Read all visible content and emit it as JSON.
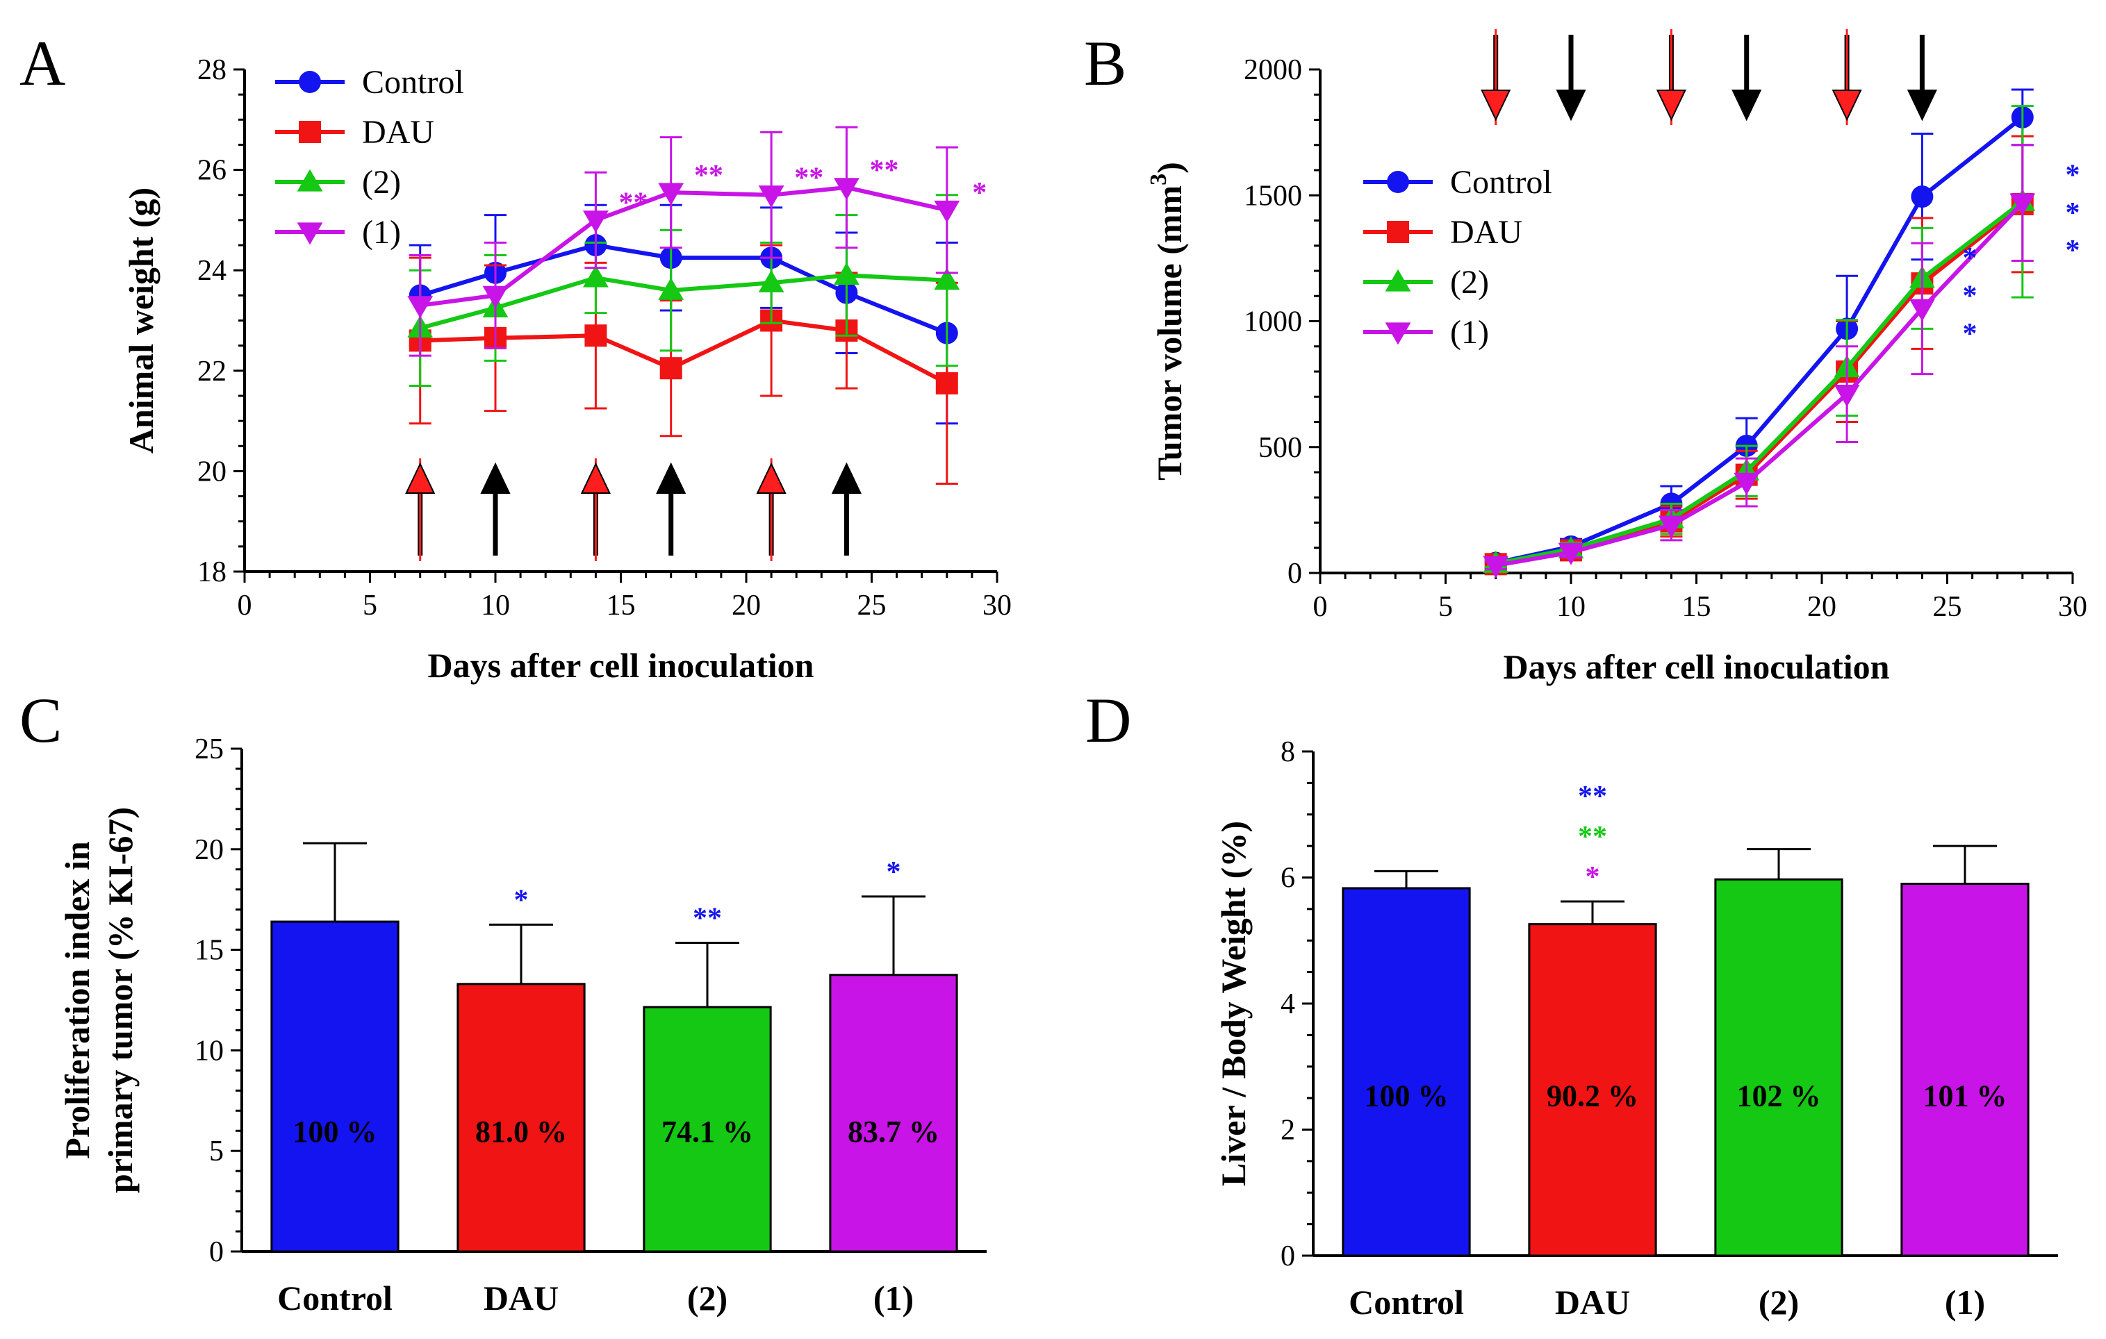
{
  "colors": {
    "Control": "#1414f0",
    "DAU": "#f01414",
    "(2)": "#14c814",
    "(1)": "#c814e6",
    "dose_red": "#ff1e1e",
    "dose_black": "#000000"
  },
  "chart_data": [
    {
      "panel": "A",
      "type": "line",
      "title": "",
      "xlabel": "Days after cell inoculation",
      "ylabel": "Animal weight (g)",
      "xlim": [
        0,
        30
      ],
      "ylim": [
        18,
        28
      ],
      "xticks": [
        0,
        5,
        10,
        15,
        20,
        25,
        30
      ],
      "yticks": [
        18,
        20,
        22,
        24,
        26,
        28
      ],
      "legend_position": "top-left",
      "x": [
        7,
        10,
        14,
        17,
        21,
        24,
        28
      ],
      "series": [
        {
          "name": "Control",
          "marker": "circle",
          "values": [
            23.5,
            23.95,
            24.5,
            24.25,
            24.25,
            23.55,
            22.75
          ],
          "errors": [
            1.0,
            1.15,
            0.8,
            1.05,
            1.0,
            1.2,
            1.8
          ]
        },
        {
          "name": "DAU",
          "marker": "square",
          "values": [
            22.6,
            22.65,
            22.7,
            22.05,
            23.0,
            22.8,
            21.75
          ],
          "errors": [
            1.65,
            1.45,
            1.45,
            1.35,
            1.5,
            1.15,
            2.0
          ]
        },
        {
          "name": "(2)",
          "marker": "triangle-up",
          "values": [
            22.85,
            23.25,
            23.85,
            23.6,
            23.75,
            23.9,
            23.8
          ],
          "errors": [
            1.15,
            1.05,
            0.7,
            1.2,
            0.8,
            1.2,
            1.7
          ]
        },
        {
          "name": "(1)",
          "marker": "triangle-down",
          "values": [
            23.3,
            23.5,
            25.0,
            25.55,
            25.5,
            25.65,
            25.2
          ],
          "errors": [
            1.0,
            1.05,
            0.95,
            1.1,
            1.25,
            1.2,
            1.25
          ]
        }
      ],
      "dose_arrows": {
        "red_days": [
          7,
          14,
          21
        ],
        "black_days": [
          10,
          17,
          24
        ],
        "direction": "up"
      },
      "annotations": [
        {
          "x": 15.5,
          "text": "**",
          "series": "(1)"
        },
        {
          "x": 18.5,
          "text": "**",
          "series": "(1)"
        },
        {
          "x": 22.5,
          "text": "**",
          "series": "(1)"
        },
        {
          "x": 25.5,
          "text": "**",
          "series": "(1)"
        },
        {
          "x": 29.3,
          "text": "*",
          "series": "(1)"
        }
      ]
    },
    {
      "panel": "B",
      "type": "line",
      "title": "",
      "xlabel": "Days after cell inoculation",
      "ylabel": "Tumor volume (mm",
      "ylabel_superscript": "3",
      "ylabel_end": ")",
      "xlim": [
        0,
        30
      ],
      "ylim": [
        0,
        2000
      ],
      "xticks": [
        0,
        5,
        10,
        15,
        20,
        25,
        30
      ],
      "yticks": [
        0,
        500,
        1000,
        1500,
        2000
      ],
      "legend_position": "center-left",
      "x": [
        7,
        10,
        14,
        17,
        21,
        24,
        28
      ],
      "series": [
        {
          "name": "Control",
          "marker": "circle",
          "values": [
            40,
            105,
            275,
            505,
            970,
            1495,
            1810
          ],
          "errors": [
            20,
            30,
            70,
            110,
            210,
            250,
            110
          ]
        },
        {
          "name": "DAU",
          "marker": "square",
          "values": [
            35,
            90,
            205,
            390,
            800,
            1150,
            1465
          ],
          "errors": [
            15,
            25,
            60,
            95,
            200,
            260,
            270
          ]
        },
        {
          "name": "(2)",
          "marker": "triangle-up",
          "values": [
            38,
            95,
            215,
            405,
            815,
            1170,
            1475
          ],
          "errors": [
            15,
            25,
            60,
            100,
            190,
            200,
            380
          ]
        },
        {
          "name": "(1)",
          "marker": "triangle-down",
          "values": [
            30,
            82,
            190,
            360,
            710,
            1050,
            1470
          ],
          "errors": [
            15,
            20,
            60,
            95,
            190,
            260,
            230
          ]
        }
      ],
      "dose_arrows": {
        "red_days": [
          7,
          14,
          21
        ],
        "black_days": [
          10,
          17,
          24
        ],
        "direction": "down"
      },
      "annotations": [
        {
          "x": 30.0,
          "y": 1610,
          "text": "*",
          "series": "Control"
        },
        {
          "x": 30.0,
          "y": 1460,
          "text": "*",
          "series": "Control"
        },
        {
          "x": 30.0,
          "y": 1310,
          "text": "*",
          "series": "Control"
        },
        {
          "x": 25.9,
          "y": 1280,
          "text": "*",
          "series": "Control"
        },
        {
          "x": 25.9,
          "y": 1130,
          "text": "*",
          "series": "Control"
        },
        {
          "x": 25.9,
          "y": 980,
          "text": "*",
          "series": "Control"
        }
      ]
    },
    {
      "panel": "C",
      "type": "bar",
      "title": "",
      "xlabel": "",
      "ylabel_lines": [
        "Proliferation index in",
        "primary tumor (% KI-67)"
      ],
      "ylim": [
        0,
        25
      ],
      "yticks": [
        0,
        5,
        10,
        15,
        20,
        25
      ],
      "categories": [
        "Control",
        "DAU",
        "(2)",
        "(1)"
      ],
      "values": [
        16.4,
        13.3,
        12.15,
        13.75
      ],
      "errors": [
        3.9,
        2.95,
        3.2,
        3.9
      ],
      "bar_labels": [
        "100 %",
        "81.0 %",
        "74.1 %",
        "83.7 %"
      ],
      "bar_label_y": 6,
      "annotations": [
        {
          "category": "DAU",
          "text": "*",
          "series": "Control"
        },
        {
          "category": "(2)",
          "text": "**",
          "series": "Control"
        },
        {
          "category": "(1)",
          "text": "*",
          "series": "Control"
        }
      ]
    },
    {
      "panel": "D",
      "type": "bar",
      "title": "",
      "xlabel": "",
      "ylabel": "Liver / Body Weight (%)",
      "ylim": [
        0,
        8
      ],
      "yticks": [
        0,
        2,
        4,
        6,
        8
      ],
      "categories": [
        "Control",
        "DAU",
        "(2)",
        "(1)"
      ],
      "values": [
        5.83,
        5.26,
        5.97,
        5.9
      ],
      "errors": [
        0.27,
        0.36,
        0.48,
        0.6
      ],
      "bar_labels": [
        "100 %",
        "90.2 %",
        "102 %",
        "101 %"
      ],
      "bar_label_y": 2.55,
      "annotations": [
        {
          "category": "DAU",
          "text": "**",
          "series": "Control"
        },
        {
          "category": "DAU",
          "text": "**",
          "series": "(2)"
        },
        {
          "category": "DAU",
          "text": "*",
          "series": "(1)"
        }
      ]
    }
  ]
}
